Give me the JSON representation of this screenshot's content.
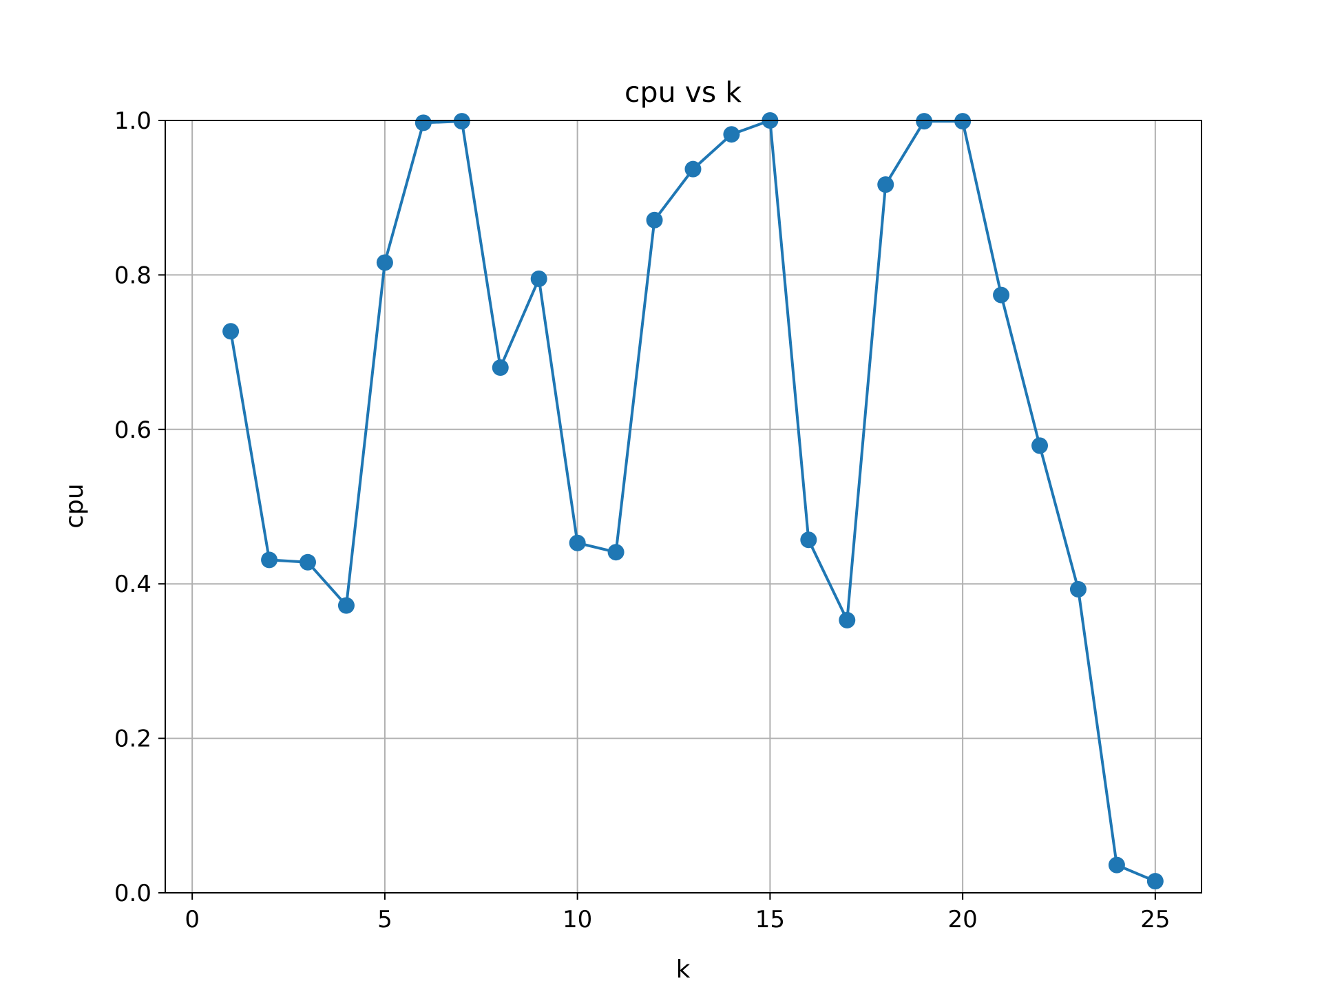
{
  "chart_data": {
    "type": "line",
    "title": "cpu vs k",
    "xlabel": "k",
    "ylabel": "cpu",
    "xlim": [
      -0.7,
      26.2
    ],
    "ylim": [
      0.0,
      1.0
    ],
    "xticks": [
      0,
      5,
      10,
      15,
      20,
      25
    ],
    "xtick_labels": [
      "0",
      "5",
      "10",
      "15",
      "20",
      "25"
    ],
    "yticks": [
      0.0,
      0.2,
      0.4,
      0.6,
      0.8,
      1.0
    ],
    "ytick_labels": [
      "0.0",
      "0.2",
      "0.4",
      "0.6",
      "0.8",
      "1.0"
    ],
    "grid": true,
    "legend": false,
    "marker": "circle",
    "color": "#1f77b4",
    "grid_color": "#b0b0b0",
    "series": [
      {
        "x": [
          1,
          2,
          3,
          4,
          5,
          6,
          7,
          8,
          9,
          10,
          11,
          12,
          13,
          14,
          15,
          16,
          17,
          18,
          19,
          20,
          21,
          22,
          23,
          24,
          25
        ],
        "y": [
          0.727,
          0.431,
          0.428,
          0.372,
          0.816,
          0.997,
          0.999,
          0.68,
          0.795,
          0.453,
          0.441,
          0.871,
          0.937,
          0.982,
          1.0,
          0.457,
          0.353,
          0.917,
          0.999,
          0.999,
          0.774,
          0.579,
          0.393,
          0.036,
          0.015
        ]
      }
    ]
  }
}
